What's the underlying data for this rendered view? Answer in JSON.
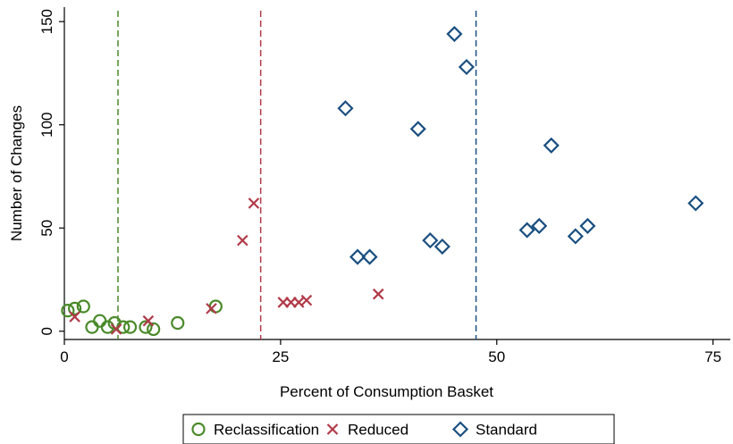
{
  "chart_data": {
    "type": "scatter",
    "xlabel": "Percent of Consumption Basket",
    "ylabel": "Number of Changes",
    "xlim": [
      0,
      77
    ],
    "ylim": [
      -4,
      157
    ],
    "x_ticks": [
      0,
      25,
      50,
      75
    ],
    "y_ticks": [
      0,
      50,
      100,
      150
    ],
    "grid": false,
    "legend_position": "bottom",
    "vertical_lines": [
      {
        "x": 6.2,
        "color": "#4a8a2a",
        "style": "dashed"
      },
      {
        "x": 22.7,
        "color": "#b03a48",
        "style": "dashed"
      },
      {
        "x": 47.6,
        "color": "#1a4f80",
        "style": "dashed"
      }
    ],
    "series": [
      {
        "name": "Reclassification",
        "marker": "circle",
        "color": "#4a8a2a",
        "points": [
          [
            0.4,
            10
          ],
          [
            1.2,
            11
          ],
          [
            2.2,
            12
          ],
          [
            3.2,
            2
          ],
          [
            4.1,
            5
          ],
          [
            5.0,
            2
          ],
          [
            5.8,
            4
          ],
          [
            6.8,
            2
          ],
          [
            7.6,
            2
          ],
          [
            9.4,
            2
          ],
          [
            10.3,
            1
          ],
          [
            13.1,
            4
          ],
          [
            17.5,
            12
          ]
        ]
      },
      {
        "name": "Reduced",
        "marker": "x",
        "color": "#b03a48",
        "points": [
          [
            1.2,
            7
          ],
          [
            6.0,
            1
          ],
          [
            9.7,
            5
          ],
          [
            17.0,
            11
          ],
          [
            20.6,
            44
          ],
          [
            21.9,
            62
          ],
          [
            25.3,
            14
          ],
          [
            26.2,
            14
          ],
          [
            27.1,
            14
          ],
          [
            28.0,
            15
          ],
          [
            36.3,
            18
          ]
        ]
      },
      {
        "name": "Standard",
        "marker": "diamond",
        "color": "#1a4f80",
        "points": [
          [
            32.5,
            108
          ],
          [
            33.9,
            36
          ],
          [
            35.3,
            36
          ],
          [
            40.9,
            98
          ],
          [
            42.3,
            44
          ],
          [
            43.7,
            41
          ],
          [
            45.1,
            144
          ],
          [
            46.5,
            128
          ],
          [
            53.5,
            49
          ],
          [
            54.9,
            51
          ],
          [
            56.3,
            90
          ],
          [
            59.1,
            46
          ],
          [
            60.5,
            51
          ],
          [
            73.0,
            62
          ]
        ]
      }
    ]
  }
}
